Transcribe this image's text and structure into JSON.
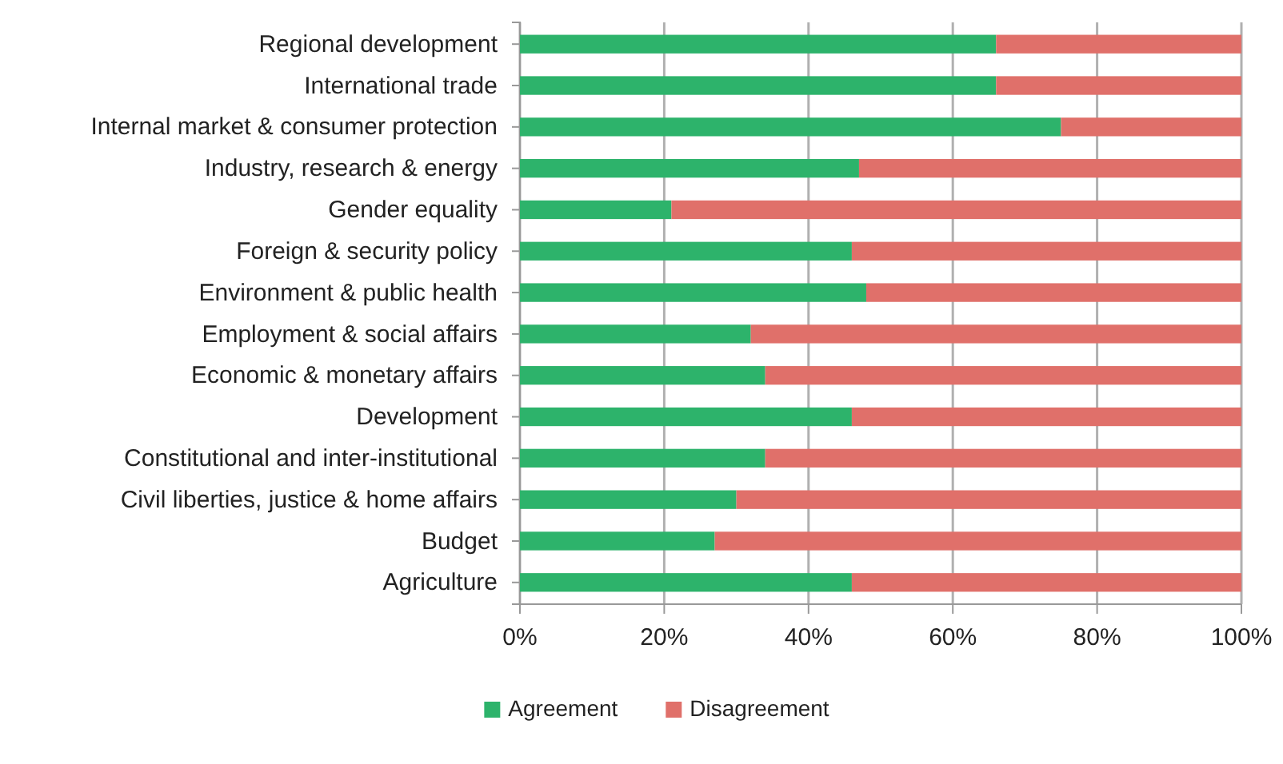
{
  "chart_data": {
    "type": "bar",
    "orientation": "horizontal",
    "stacked": true,
    "categories": [
      "Regional development",
      "International trade",
      "Internal market & consumer protection",
      "Industry, research & energy",
      "Gender equality",
      "Foreign & security policy",
      "Environment & public health",
      "Employment & social affairs",
      "Economic & monetary affairs",
      "Development",
      "Constitutional and inter-institutional",
      "Civil liberties, justice & home affairs",
      "Budget",
      "Agriculture"
    ],
    "series": [
      {
        "name": "Agreement",
        "color": "#2db36b",
        "values": [
          66,
          66,
          75,
          47,
          21,
          46,
          48,
          32,
          34,
          46,
          34,
          30,
          27,
          46
        ]
      },
      {
        "name": "Disagreement",
        "color": "#e0706a",
        "values": [
          34,
          34,
          25,
          53,
          79,
          54,
          52,
          68,
          66,
          54,
          66,
          70,
          73,
          54
        ]
      }
    ],
    "xlim": [
      0,
      100
    ],
    "xticks": [
      {
        "value": 0,
        "label": "0%"
      },
      {
        "value": 20,
        "label": "20%"
      },
      {
        "value": 40,
        "label": "40%"
      },
      {
        "value": 60,
        "label": "60%"
      },
      {
        "value": 80,
        "label": "80%"
      },
      {
        "value": 100,
        "label": "100%"
      }
    ],
    "grid": "x",
    "legend": "bottom"
  }
}
